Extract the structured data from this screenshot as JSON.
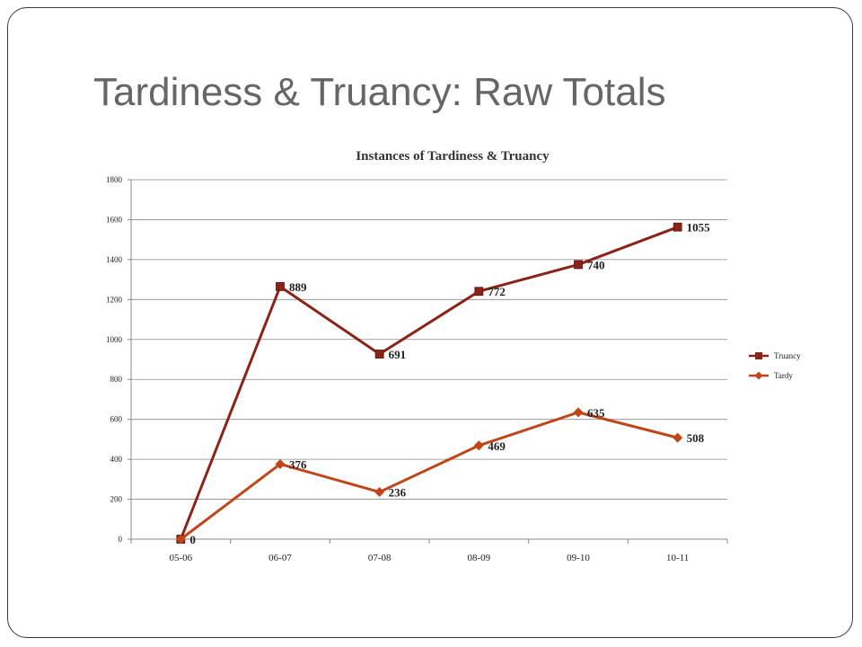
{
  "slide": {
    "title": "Tardiness & Truancy:  Raw Totals"
  },
  "chart_data": {
    "type": "line",
    "title": "Instances of Tardiness & Truancy",
    "xlabel": "",
    "ylabel": "",
    "ylim": [
      0,
      1800
    ],
    "yticks": [
      0,
      200,
      400,
      600,
      800,
      1000,
      1200,
      1400,
      1600,
      1800
    ],
    "grid": true,
    "legend_position": "right",
    "categories": [
      "05-06",
      "06-07",
      "07-08",
      "08-09",
      "09-10",
      "10-11"
    ],
    "series": [
      {
        "name": "Truancy",
        "marker": "square",
        "color": "#8b2318",
        "values": [
          0,
          1265,
          927,
          1241,
          1375,
          1563
        ],
        "labels": [
          "0",
          "889",
          "691",
          "772",
          "740",
          "1055"
        ]
      },
      {
        "name": "Tardy",
        "marker": "diamond",
        "color": "#c0461a",
        "values": [
          0,
          376,
          236,
          469,
          635,
          508
        ],
        "labels": [
          "",
          "376",
          "236",
          "469",
          "635",
          "508"
        ]
      }
    ]
  }
}
